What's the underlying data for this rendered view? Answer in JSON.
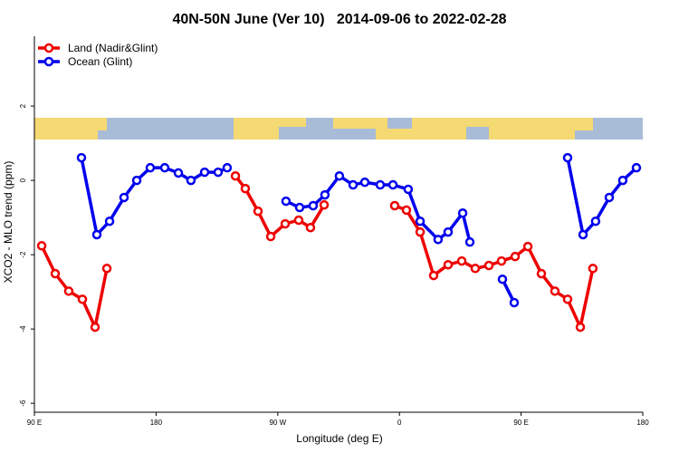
{
  "chart_data": {
    "type": "line",
    "title": "40N-50N June (Ver 10)   2014-09-06 to 2022-02-28",
    "x_label": "Longitude (deg E)",
    "y_label": "XCO2 - MLO trend (ppm)",
    "xlim": [
      90,
      540
    ],
    "xticks": [
      {
        "value": 90,
        "label": "90 E"
      },
      {
        "value": 180,
        "label": "180"
      },
      {
        "value": 270,
        "label": "90 W"
      },
      {
        "value": 360,
        "label": "0"
      },
      {
        "value": 450,
        "label": "90 E"
      },
      {
        "value": 540,
        "label": "180"
      }
    ],
    "ylim": [
      -6.24,
      3.88
    ],
    "yticks": [
      2,
      0,
      -2,
      -4,
      -6
    ],
    "legend": "top-left",
    "series": [
      {
        "name": "Land (Nadir&Glint)",
        "color": "#ee0000",
        "x": [
          95.4,
          105.4,
          115.4,
          125.5,
          134.9,
          143.6,
          null,
          238.7,
          246.0,
          255.4,
          264.8,
          275.5,
          285.5,
          294.2,
          304.3,
          null,
          356.5,
          365.2,
          375.3,
          385.3,
          396.0,
          406.1,
          416.1,
          426.2,
          435.5,
          445.6,
          455.0,
          465.0,
          475.0,
          484.4,
          493.8,
          503.1
        ],
        "values": [
          -1.76,
          -2.51,
          -2.98,
          -3.2,
          -3.95,
          -2.37,
          null,
          0.12,
          -0.22,
          -0.83,
          -1.51,
          -1.17,
          -1.07,
          -1.27,
          -0.66,
          null,
          -0.68,
          -0.8,
          -1.39,
          -2.56,
          -2.27,
          -2.17,
          -2.37,
          -2.29,
          -2.17,
          -2.05,
          -1.78,
          -2.51,
          -2.98,
          -3.2,
          -3.95,
          -2.37
        ]
      },
      {
        "name": "Ocean (Glint)",
        "color": "#0000ee",
        "x": [
          124.8,
          136.2,
          145.6,
          156.3,
          165.7,
          175.7,
          186.4,
          196.5,
          205.8,
          215.9,
          225.9,
          232.6,
          null,
          276.1,
          286.2,
          296.2,
          304.9,
          315.6,
          325.7,
          334.4,
          345.8,
          355.2,
          366.5,
          375.3,
          388.6,
          396.0,
          406.8,
          412.1,
          null,
          436.2,
          444.9,
          null,
          484.4,
          495.8,
          505.1,
          515.2,
          525.2,
          535.3
        ],
        "values": [
          0.61,
          -1.46,
          -1.1,
          -0.46,
          0,
          0.34,
          0.34,
          0.2,
          0,
          0.22,
          0.22,
          0.34,
          null,
          -0.56,
          -0.73,
          -0.68,
          -0.39,
          0.12,
          -0.12,
          -0.05,
          -0.12,
          -0.12,
          -0.24,
          -1.1,
          -1.59,
          -1.39,
          -0.88,
          -1.66,
          null,
          -2.66,
          -3.29,
          null,
          0.61,
          -1.46,
          -1.1,
          -0.46,
          0,
          0.34
        ]
      }
    ]
  }
}
